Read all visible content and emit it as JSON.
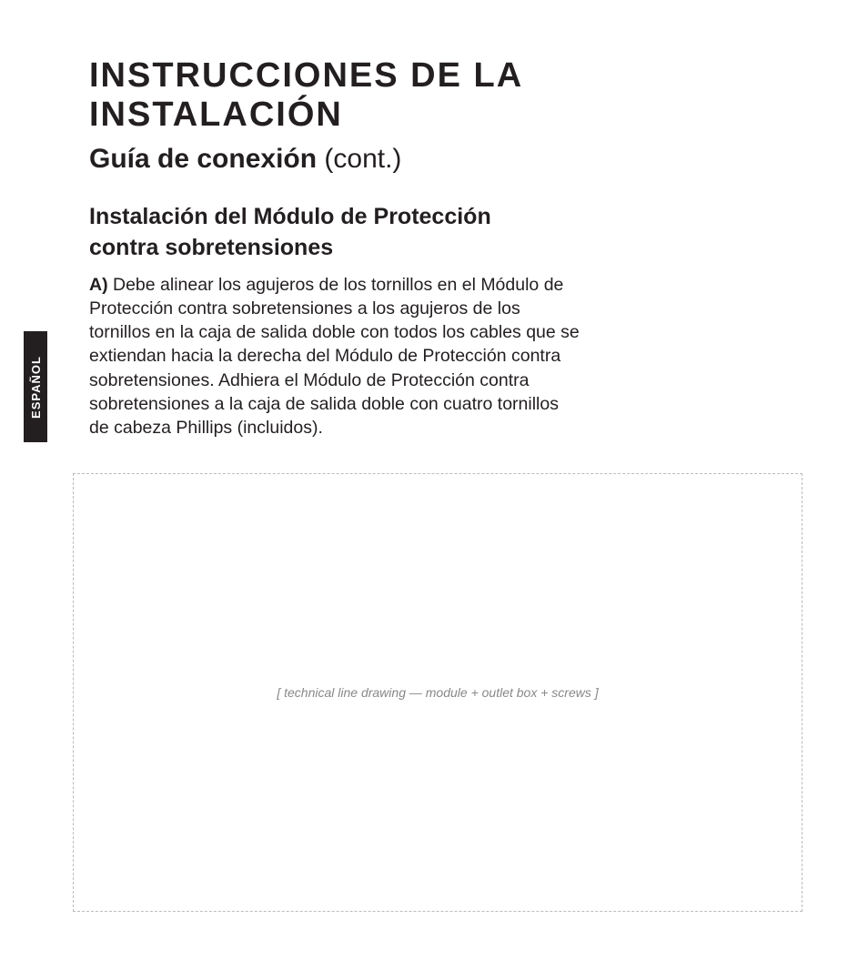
{
  "side_tab": {
    "label": "ESPAÑOL"
  },
  "main_title": "INSTRUCCIONES DE LA INSTALACIÓN",
  "subtitle": {
    "bold": "Guía de conexión",
    "light": " (cont.)"
  },
  "section_title": "Instalación del Módulo de Protección contra sobretensiones",
  "step": {
    "label": "A)",
    "text": " Debe alinear los agujeros de los tornillos en el Módulo de Protección contra sobretensiones a los agujeros de los tornillos en la caja de salida doble con todos los cables que se extiendan hacia la derecha del Módulo de Protección contra sobretensiones. Adhiera el Módulo de Protección contra sobretensiones a la caja de salida doble con cuatro tornillos de cabeza Phillips (incluidos)."
  },
  "diagram_note": "[ technical line drawing — module + outlet box + screws ]",
  "colors": {
    "text": "#231f20",
    "background": "#ffffff",
    "tab_bg": "#231f20",
    "tab_fg": "#ffffff"
  }
}
